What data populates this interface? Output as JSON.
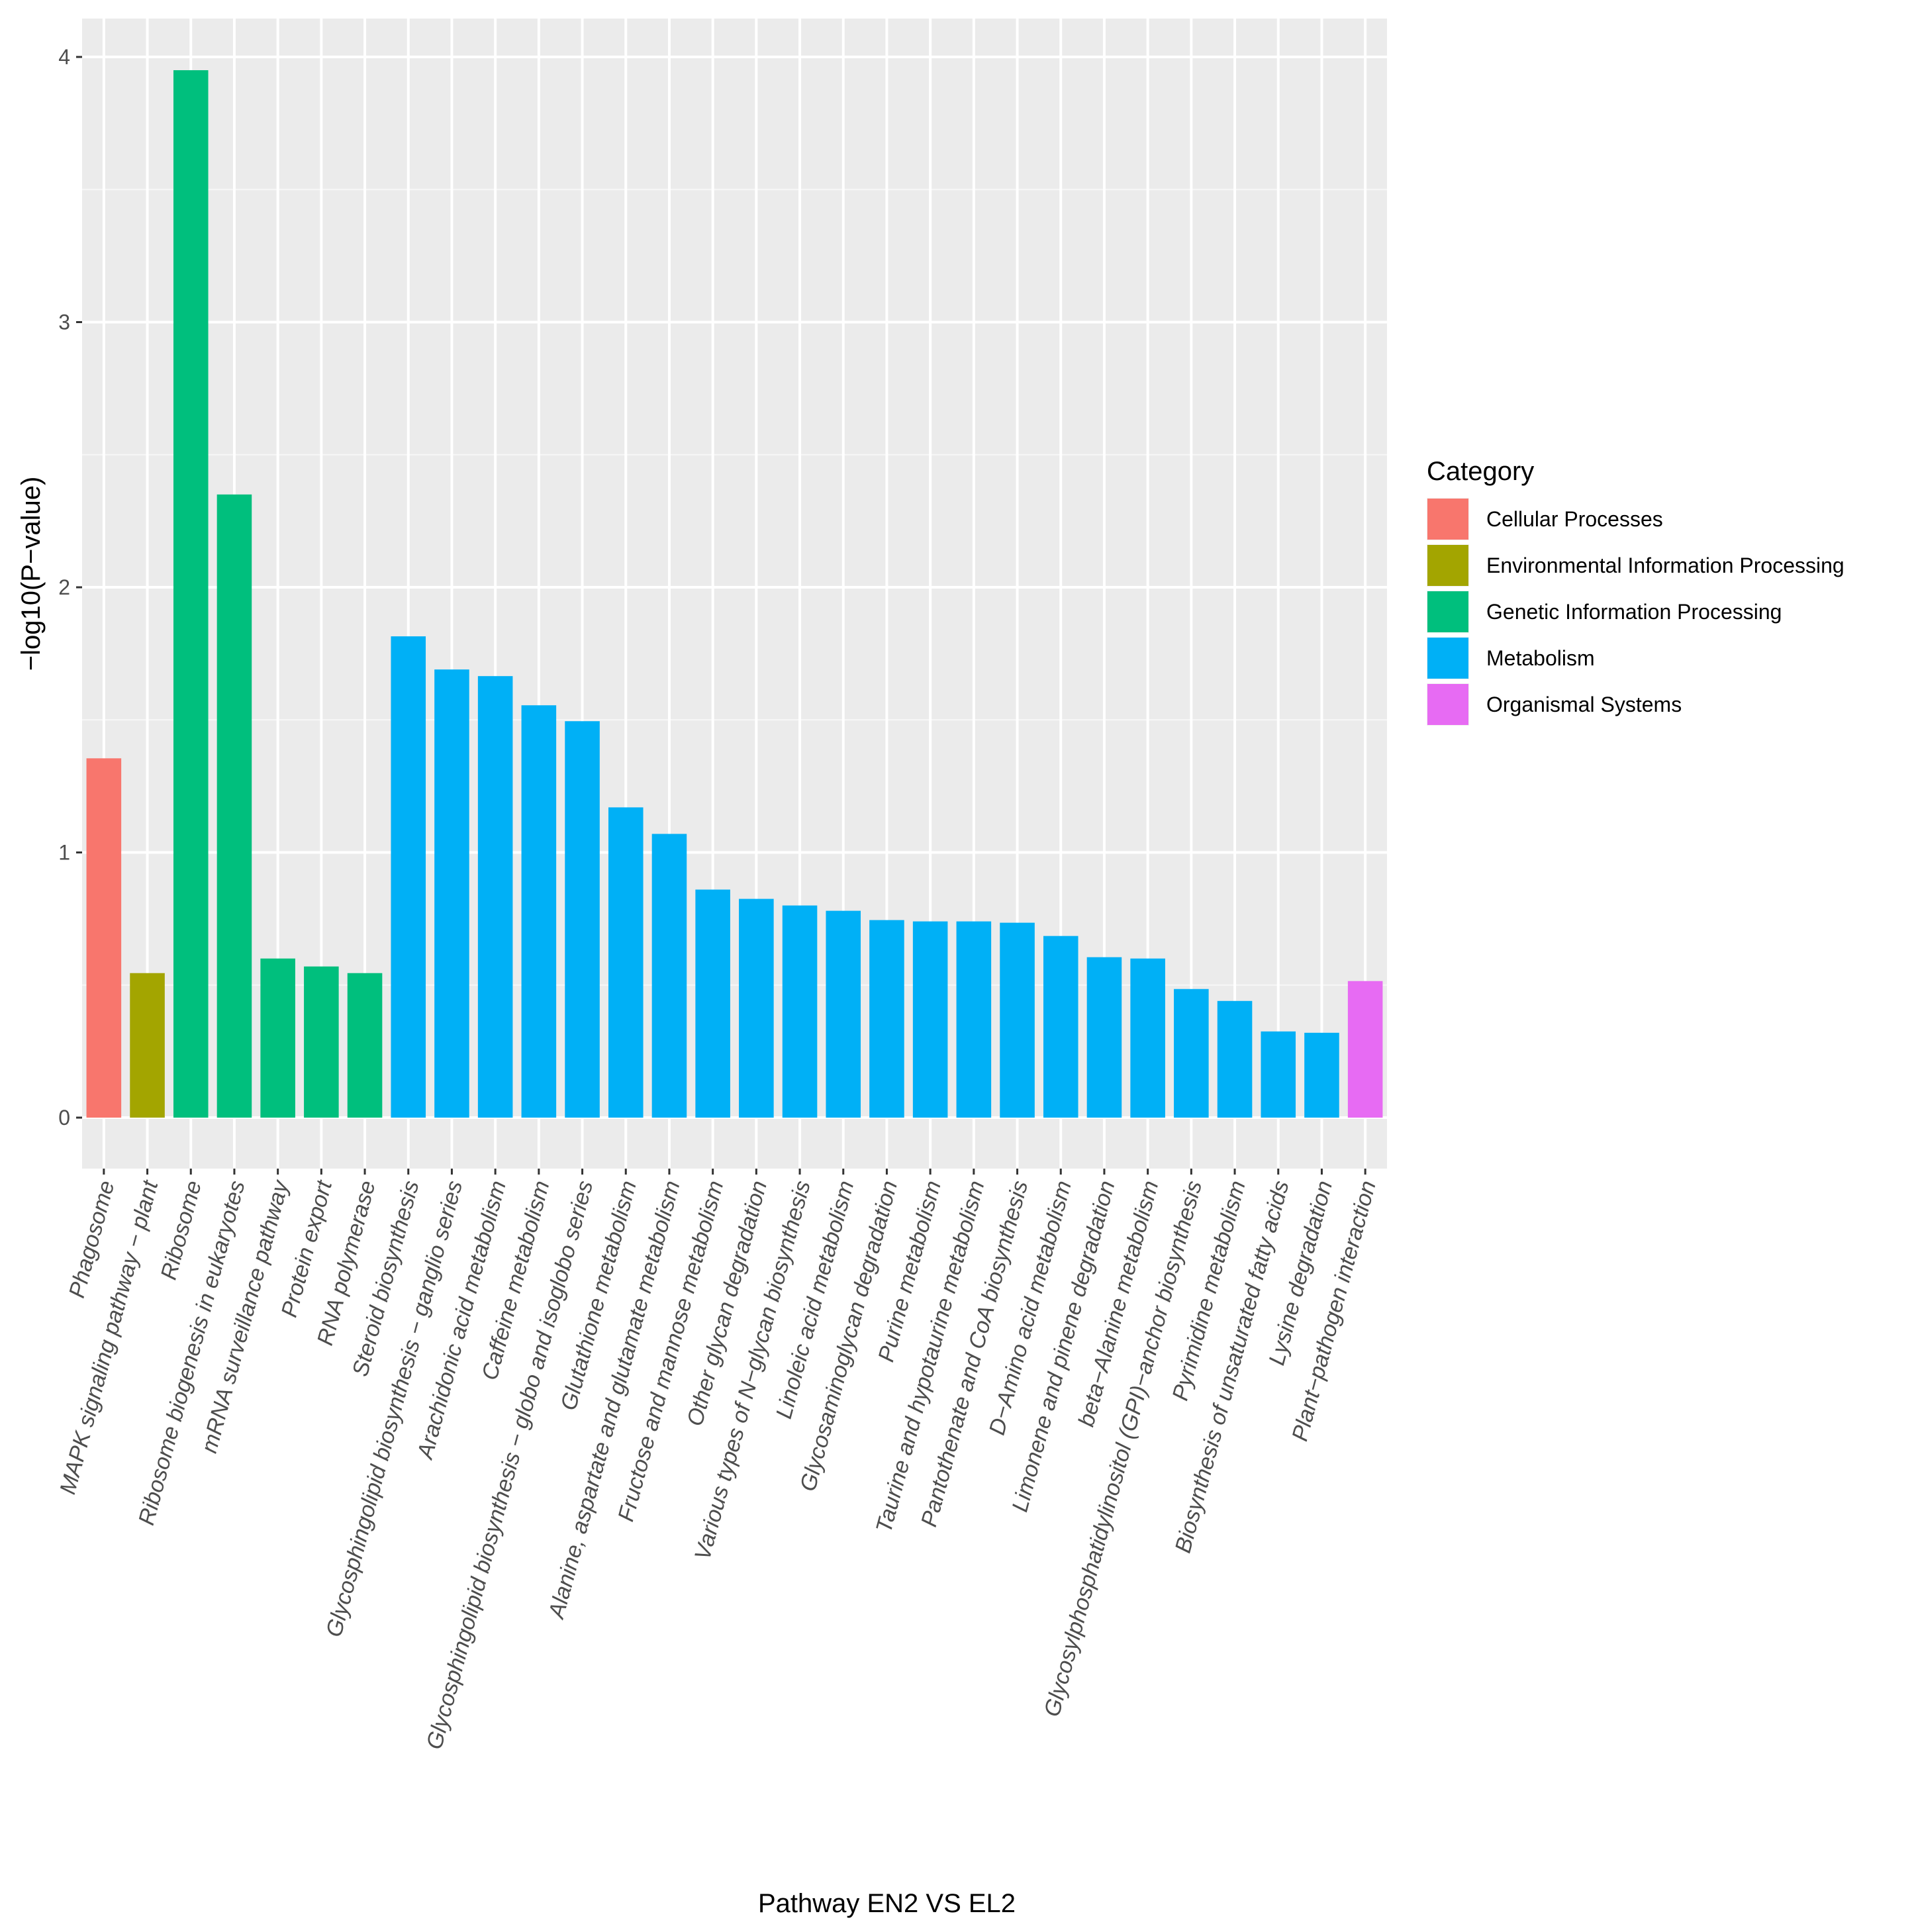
{
  "chart_data": {
    "type": "bar",
    "title": "",
    "xlabel": "Pathway  EN2 VS EL2",
    "ylabel": "−log10(P−value)",
    "ylim": [
      -0.2,
      4.1
    ],
    "yticks": [
      0,
      1,
      2,
      3,
      4
    ],
    "grid": true,
    "legend_position": "right",
    "legend_title": "Category",
    "legend": [
      {
        "name": "Cellular Processes",
        "color": "#F8766D"
      },
      {
        "name": "Environmental Information Processing",
        "color": "#A3A500"
      },
      {
        "name": "Genetic Information Processing",
        "color": "#00BF7D"
      },
      {
        "name": "Metabolism",
        "color": "#00B0F6"
      },
      {
        "name": "Organismal Systems",
        "color": "#E76BF3"
      }
    ],
    "categories": [
      "Phagosome",
      "MAPK signaling pathway − plant",
      "Ribosome",
      "Ribosome biogenesis in eukaryotes",
      "mRNA surveillance pathway",
      "Protein export",
      "RNA polymerase",
      "Steroid biosynthesis",
      "Glycosphingolipid biosynthesis − ganglio series",
      "Arachidonic acid metabolism",
      "Caffeine metabolism",
      "Glycosphingolipid biosynthesis − globo and isoglobo series",
      "Glutathione metabolism",
      "Alanine, aspartate and glutamate metabolism",
      "Fructose and mannose metabolism",
      "Other glycan degradation",
      "Various types of N−glycan biosynthesis",
      "Linoleic acid metabolism",
      "Glycosaminoglycan degradation",
      "Purine metabolism",
      "Taurine and hypotaurine metabolism",
      "Pantothenate and CoA biosynthesis",
      "D−Amino acid metabolism",
      "Limonene and pinene degradation",
      "beta−Alanine metabolism",
      "Glycosylphosphatidylinositol (GPI)−anchor biosynthesis",
      "Pyrimidine metabolism",
      "Biosynthesis of unsaturated fatty acids",
      "Lysine degradation",
      "Plant−pathogen interaction"
    ],
    "values": [
      1.355,
      0.545,
      3.95,
      2.35,
      0.6,
      0.57,
      0.545,
      1.815,
      1.69,
      1.665,
      1.555,
      1.495,
      1.17,
      1.07,
      0.86,
      0.825,
      0.8,
      0.78,
      0.745,
      0.74,
      0.74,
      0.735,
      0.685,
      0.605,
      0.6,
      0.485,
      0.44,
      0.325,
      0.32,
      0.515
    ],
    "series_category": [
      "Cellular Processes",
      "Environmental Information Processing",
      "Genetic Information Processing",
      "Genetic Information Processing",
      "Genetic Information Processing",
      "Genetic Information Processing",
      "Genetic Information Processing",
      "Metabolism",
      "Metabolism",
      "Metabolism",
      "Metabolism",
      "Metabolism",
      "Metabolism",
      "Metabolism",
      "Metabolism",
      "Metabolism",
      "Metabolism",
      "Metabolism",
      "Metabolism",
      "Metabolism",
      "Metabolism",
      "Metabolism",
      "Metabolism",
      "Metabolism",
      "Metabolism",
      "Metabolism",
      "Metabolism",
      "Metabolism",
      "Metabolism",
      "Organismal Systems"
    ]
  },
  "colors": {
    "panel_background": "#EBEBEB",
    "grid_major": "#FFFFFF",
    "tick_text": "#4D4D4D",
    "axis_title": "#000000"
  }
}
